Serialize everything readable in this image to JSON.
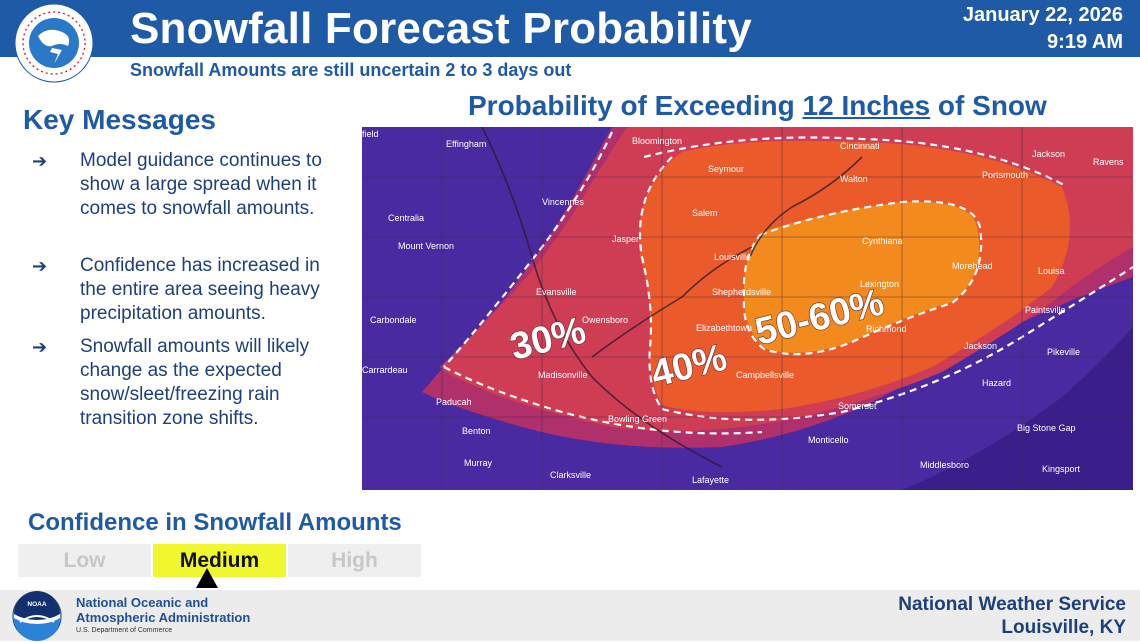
{
  "header": {
    "title": "Snowfall Forecast Probability",
    "subtitle": "Snowfall Amounts are still uncertain 2 to 3 days out",
    "date": "January 22, 2026",
    "time": "9:19 AM",
    "logo_icon": "nws-logo-icon",
    "logo_text": "NATIONAL WEATHER SERVICE"
  },
  "key_messages": {
    "title": "Key Messages",
    "bullet_glyph": "➔",
    "items": [
      "Model guidance continues to show a large spread when it comes to snowfall amounts.",
      "Confidence has increased in the entire area seeing heavy precipitation amounts.",
      "Snowfall amounts will likely change as the expected snow/sleet/freezing rain transition zone shifts."
    ]
  },
  "map": {
    "title_pre": "Probability of Exceeding ",
    "title_ul": "12 Inches",
    "title_post": " of Snow",
    "probability_labels": [
      "30%",
      "40%",
      "50-60%"
    ],
    "colors": {
      "base": "#4a2aa0",
      "band_low": "#b0306b",
      "band_30": "#cf3d55",
      "band_40": "#ea5a2a",
      "band_50": "#f28a1e"
    },
    "cities": [
      "field",
      "Effingham",
      "Bloomington",
      "Cincinnati",
      "Jackson",
      "Ravens",
      "Seymour",
      "Walton",
      "Portsmouth",
      "Vincennes",
      "Centralia",
      "Salem",
      "Cynthiana",
      "Mount Vernon",
      "Jasper",
      "Louisville",
      "Morehead",
      "Louisa",
      "Evansville",
      "Lexington",
      "Shepherdsville",
      "Carbondale",
      "Owensboro",
      "Elizabethtown",
      "Richmond",
      "Paintsville",
      "Jackson",
      "Pikeville",
      "Carrardeau",
      "Madisonville",
      "Campbellsville",
      "Hazard",
      "Paducah",
      "Somerset",
      "Bowling Green",
      "Benton",
      "Monticello",
      "Big Stone Gap",
      "Murray",
      "Middlesboro",
      "Kingsport",
      "Clarksville",
      "Lafayette"
    ]
  },
  "confidence": {
    "title": "Confidence in Snowfall Amounts",
    "levels": [
      "Low",
      "Medium",
      "High"
    ],
    "selected": "Medium"
  },
  "footer": {
    "noaa_line1": "National Oceanic and",
    "noaa_line2": "Atmospheric Administration",
    "noaa_line3": "U.S. Department of Commerce",
    "noaa_icon": "noaa-logo-icon",
    "office_line1": "National Weather Service",
    "office_line2": "Louisville, KY"
  }
}
